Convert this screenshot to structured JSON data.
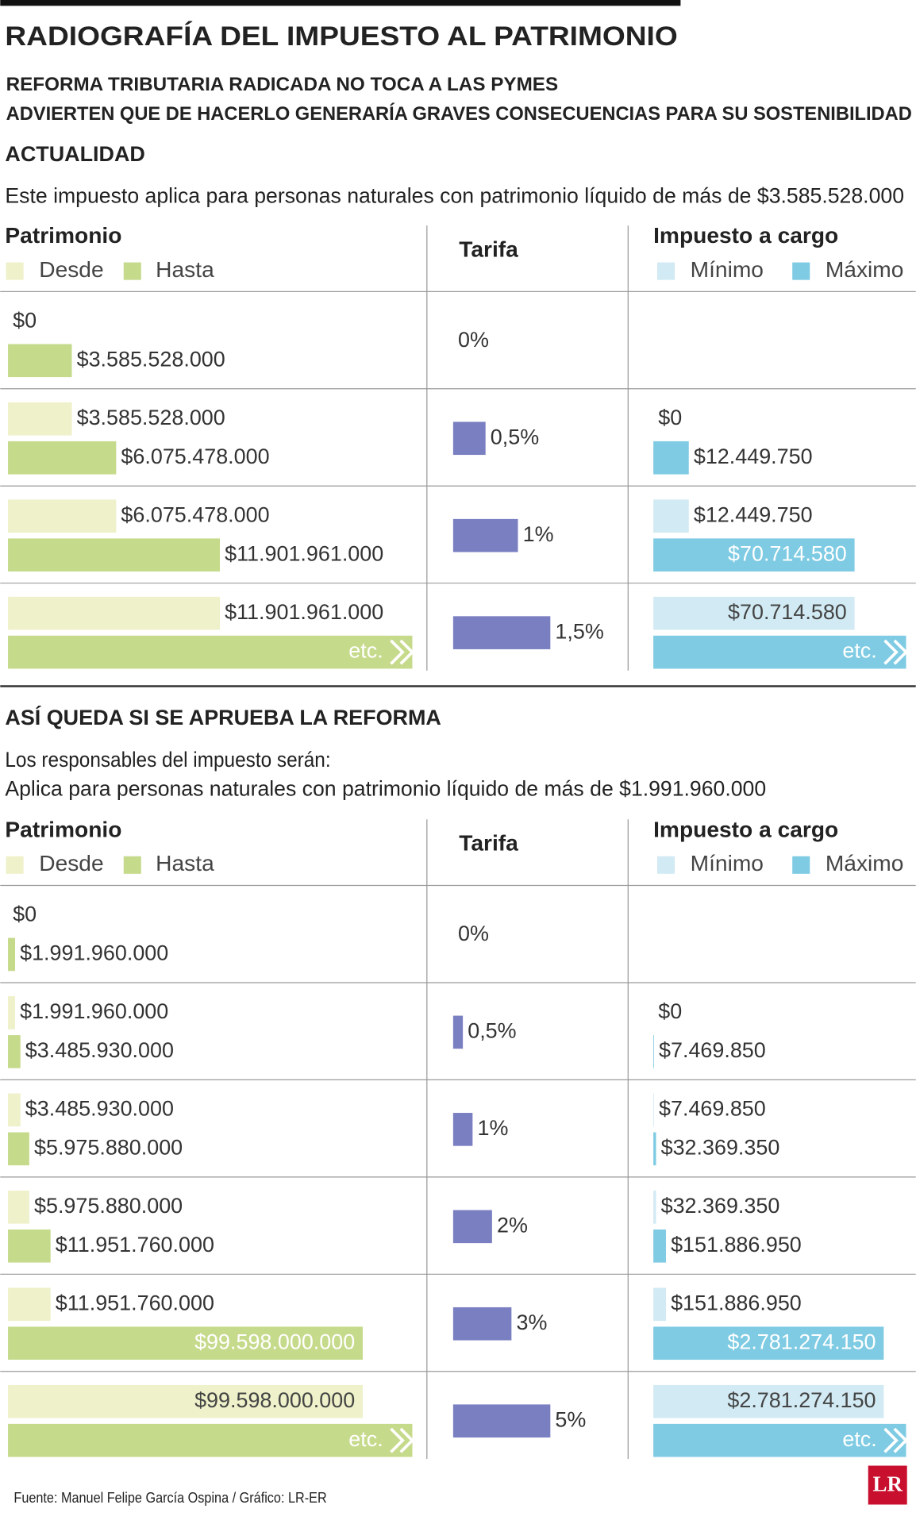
{
  "title": "RADIOGRAFÍA DEL IMPUESTO AL PATRIMONIO",
  "subtitle_lines": [
    "REFORMA TRIBUTARIA RADICADA NO TOCA A LAS PYMES",
    "ADVIERTEN QUE DE HACERLO GENERARÍA GRAVES CONSECUENCIAS PARA SU SOSTENIBILIDAD"
  ],
  "colors": {
    "desde": "#eef1c9",
    "hasta": "#c6da8b",
    "tarifa": "#7a7fc1",
    "minimo": "#d1eaf3",
    "maximo": "#7ecbe3"
  },
  "sections": [
    {
      "heading": "ACTUALIDAD",
      "notes": [
        "Este impuesto aplica para personas naturales con patrimonio líquido de más de $3.585.528.000"
      ],
      "columns": {
        "patrimonio": "Patrimonio",
        "desde": "Desde",
        "hasta": "Hasta",
        "tarifa": "Tarifa",
        "impuesto": "Impuesto a cargo",
        "minimo": "Mínimo",
        "maximo": "Máximo"
      },
      "rows": [
        {
          "desde": {
            "value": 0,
            "label": "$0"
          },
          "hasta": {
            "value": 3585528000,
            "label": "$3.585.528.000"
          },
          "tarifa": {
            "value": 0,
            "label": "0%"
          }
        },
        {
          "desde": {
            "value": 3585528000,
            "label": "$3.585.528.000"
          },
          "hasta": {
            "value": 6075478000,
            "label": "$6.075.478.000"
          },
          "tarifa": {
            "value": 0.5,
            "label": "0,5%"
          },
          "minimo": {
            "value": 0,
            "label": "$0"
          },
          "maximo": {
            "value": 12449750,
            "label": "$12.449.750"
          }
        },
        {
          "desde": {
            "value": 6075478000,
            "label": "$6.075.478.000"
          },
          "hasta": {
            "value": 11901961000,
            "label": "$11.901.961.000"
          },
          "tarifa": {
            "value": 1,
            "label": "1%"
          },
          "minimo": {
            "value": 12449750,
            "label": "$12.449.750"
          },
          "maximo": {
            "value": 70714580,
            "label": "$70.714.580"
          }
        },
        {
          "desde": {
            "value": 11901961000,
            "label": "$11.901.961.000"
          },
          "hasta": "etc.",
          "tarifa": {
            "value": 1.5,
            "label": "1,5%"
          },
          "minimo": {
            "value": 70714580,
            "label": "$70.714.580"
          },
          "maximo": "etc."
        }
      ]
    },
    {
      "heading": "ASÍ QUEDA SI SE APRUEBA LA REFORMA",
      "notes": [
        "Los responsables del impuesto serán:",
        "Aplica para personas naturales con patrimonio líquido de más de $1.991.960.000"
      ],
      "columns": {
        "patrimonio": "Patrimonio",
        "desde": "Desde",
        "hasta": "Hasta",
        "tarifa": "Tarifa",
        "impuesto": "Impuesto a cargo",
        "minimo": "Mínimo",
        "maximo": "Máximo"
      },
      "rows": [
        {
          "desde": {
            "value": 0,
            "label": "$0"
          },
          "hasta": {
            "value": 1991960000,
            "label": "$1.991.960.000"
          },
          "tarifa": {
            "value": 0,
            "label": "0%"
          }
        },
        {
          "desde": {
            "value": 1991960000,
            "label": "$1.991.960.000"
          },
          "hasta": {
            "value": 3485930000,
            "label": "$3.485.930.000"
          },
          "tarifa": {
            "value": 0.5,
            "label": "0,5%"
          },
          "minimo": {
            "value": 0,
            "label": "$0"
          },
          "maximo": {
            "value": 7469850,
            "label": "$7.469.850"
          }
        },
        {
          "desde": {
            "value": 3485930000,
            "label": "$3.485.930.000"
          },
          "hasta": {
            "value": 5975880000,
            "label": "$5.975.880.000"
          },
          "tarifa": {
            "value": 1,
            "label": "1%"
          },
          "minimo": {
            "value": 7469850,
            "label": "$7.469.850"
          },
          "maximo": {
            "value": 32369350,
            "label": "$32.369.350"
          }
        },
        {
          "desde": {
            "value": 5975880000,
            "label": "$5.975.880.000"
          },
          "hasta": {
            "value": 11951760000,
            "label": "$11.951.760.000"
          },
          "tarifa": {
            "value": 2,
            "label": "2%"
          },
          "minimo": {
            "value": 32369350,
            "label": "$32.369.350"
          },
          "maximo": {
            "value": 151886950,
            "label": "$151.886.950"
          }
        },
        {
          "desde": {
            "value": 11951760000,
            "label": "$11.951.760.000"
          },
          "hasta": {
            "value": 99598000000,
            "label": "$99.598.000.000"
          },
          "tarifa": {
            "value": 3,
            "label": "3%"
          },
          "minimo": {
            "value": 151886950,
            "label": "$151.886.950"
          },
          "maximo": {
            "value": 2781274150,
            "label": "$2.781.274.150"
          }
        },
        {
          "desde": {
            "value": 99598000000,
            "label": "$99.598.000.000"
          },
          "hasta": "etc.",
          "tarifa": {
            "value": 5,
            "label": "5%"
          },
          "minimo": {
            "value": 2781274150,
            "label": "$2.781.274.150"
          },
          "maximo": "etc."
        }
      ]
    }
  ],
  "source": "Fuente: Manuel Felipe García Ospina / Gráfico: LR-ER",
  "logo": "LR"
}
